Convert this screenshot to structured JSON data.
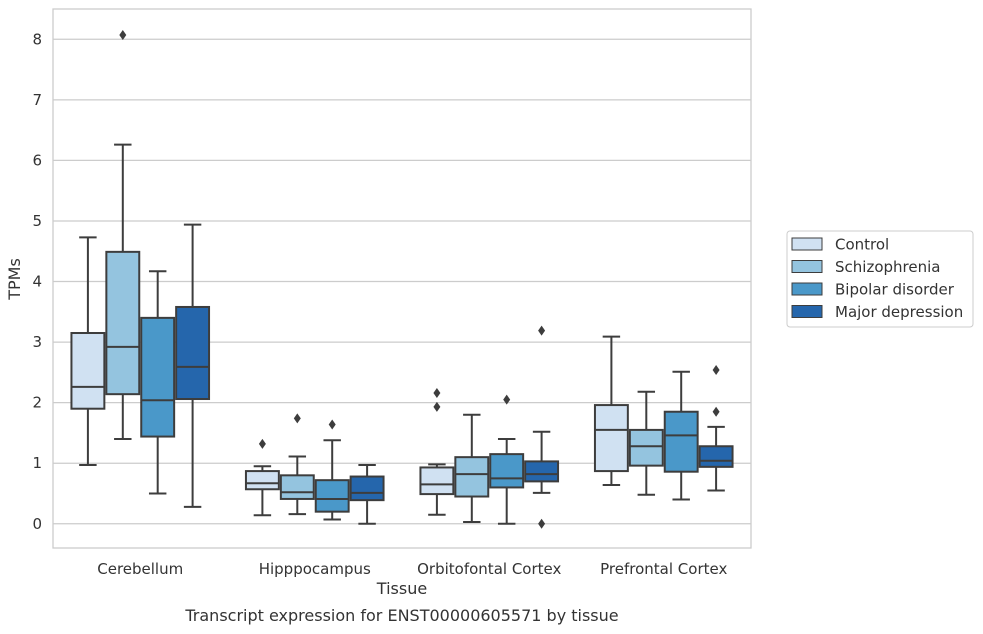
{
  "caption": "Transcript expression for ENST00000605571 by tissue",
  "chart_data": {
    "type": "box",
    "title": "",
    "xlabel": "Tissue",
    "ylabel": "TPMs",
    "ylim": [
      -0.4,
      8.5
    ],
    "yticks": [
      0,
      1,
      2,
      3,
      4,
      5,
      6,
      7,
      8
    ],
    "grid": "horizontal",
    "legend_position": "right",
    "categories": [
      "Cerebellum",
      "Hipppocampus",
      "Orbitofontal Cortex",
      "Prefrontal Cortex"
    ],
    "series": [
      {
        "name": "Control",
        "color": "#d0e1f2",
        "boxes": [
          {
            "whislo": 0.97,
            "q1": 1.9,
            "med": 2.26,
            "q3": 3.15,
            "whishi": 4.73,
            "fliers": []
          },
          {
            "whislo": 0.14,
            "q1": 0.57,
            "med": 0.67,
            "q3": 0.87,
            "whishi": 0.95,
            "fliers": [
              1.32
            ]
          },
          {
            "whislo": 0.15,
            "q1": 0.49,
            "med": 0.65,
            "q3": 0.93,
            "whishi": 0.98,
            "fliers": [
              1.93,
              2.16
            ]
          },
          {
            "whislo": 0.64,
            "q1": 0.87,
            "med": 1.55,
            "q3": 1.96,
            "whishi": 3.09,
            "fliers": []
          }
        ]
      },
      {
        "name": "Schizophrenia",
        "color": "#94c4df",
        "boxes": [
          {
            "whislo": 1.4,
            "q1": 2.14,
            "med": 2.92,
            "q3": 4.49,
            "whishi": 6.26,
            "fliers": [
              8.07
            ]
          },
          {
            "whislo": 0.16,
            "q1": 0.41,
            "med": 0.52,
            "q3": 0.8,
            "whishi": 1.11,
            "fliers": [
              1.74
            ]
          },
          {
            "whislo": 0.03,
            "q1": 0.45,
            "med": 0.82,
            "q3": 1.1,
            "whishi": 1.8,
            "fliers": []
          },
          {
            "whislo": 0.48,
            "q1": 0.96,
            "med": 1.28,
            "q3": 1.55,
            "whishi": 2.18,
            "fliers": []
          }
        ]
      },
      {
        "name": "Bipolar disorder",
        "color": "#4a98c9",
        "boxes": [
          {
            "whislo": 0.5,
            "q1": 1.44,
            "med": 2.04,
            "q3": 3.4,
            "whishi": 4.17,
            "fliers": []
          },
          {
            "whislo": 0.07,
            "q1": 0.2,
            "med": 0.41,
            "q3": 0.72,
            "whishi": 1.38,
            "fliers": [
              1.64
            ]
          },
          {
            "whislo": 0.0,
            "q1": 0.6,
            "med": 0.75,
            "q3": 1.15,
            "whishi": 1.4,
            "fliers": [
              2.05
            ]
          },
          {
            "whislo": 0.4,
            "q1": 0.86,
            "med": 1.46,
            "q3": 1.85,
            "whishi": 2.51,
            "fliers": []
          }
        ]
      },
      {
        "name": "Major depression",
        "color": "#2566ac",
        "boxes": [
          {
            "whislo": 0.28,
            "q1": 2.06,
            "med": 2.59,
            "q3": 3.58,
            "whishi": 4.94,
            "fliers": []
          },
          {
            "whislo": 0.0,
            "q1": 0.39,
            "med": 0.51,
            "q3": 0.78,
            "whishi": 0.97,
            "fliers": []
          },
          {
            "whislo": 0.51,
            "q1": 0.7,
            "med": 0.82,
            "q3": 1.03,
            "whishi": 1.52,
            "fliers": [
              0.0,
              3.19
            ]
          },
          {
            "whislo": 0.55,
            "q1": 0.94,
            "med": 1.04,
            "q3": 1.28,
            "whishi": 1.6,
            "fliers": [
              1.85,
              2.54
            ]
          }
        ]
      }
    ]
  }
}
